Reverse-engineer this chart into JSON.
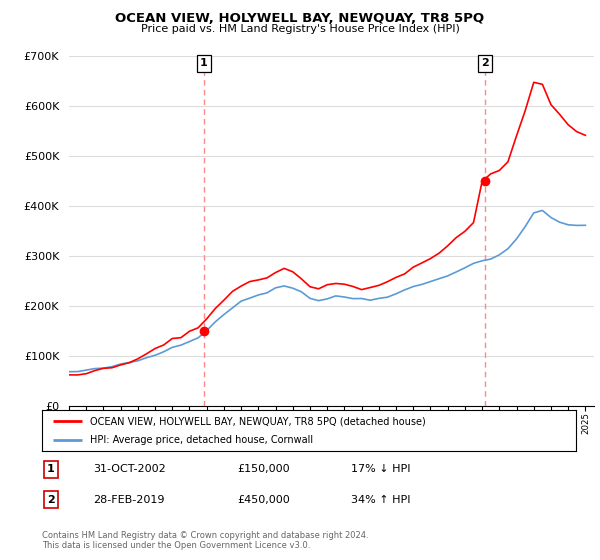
{
  "title": "OCEAN VIEW, HOLYWELL BAY, NEWQUAY, TR8 5PQ",
  "subtitle": "Price paid vs. HM Land Registry's House Price Index (HPI)",
  "ylim": [
    0,
    700000
  ],
  "sale1_year": 2002.83,
  "sale1_price": 150000,
  "sale2_year": 2019.16,
  "sale2_price": 450000,
  "legend_line1": "OCEAN VIEW, HOLYWELL BAY, NEWQUAY, TR8 5PQ (detached house)",
  "legend_line2": "HPI: Average price, detached house, Cornwall",
  "table_row1": [
    "1",
    "31-OCT-2002",
    "£150,000",
    "17% ↓ HPI"
  ],
  "table_row2": [
    "2",
    "28-FEB-2019",
    "£450,000",
    "34% ↑ HPI"
  ],
  "footer": "Contains HM Land Registry data © Crown copyright and database right 2024.\nThis data is licensed under the Open Government Licence v3.0.",
  "hpi_color": "#5b9bd5",
  "price_color": "#ff0000",
  "vline_color": "#ff8888",
  "background_color": "#ffffff",
  "grid_color": "#dddddd",
  "years_hpi": [
    1995,
    1995.5,
    1996,
    1996.5,
    1997,
    1997.5,
    1998,
    1998.5,
    1999,
    1999.5,
    2000,
    2000.5,
    2001,
    2001.5,
    2002,
    2002.5,
    2003,
    2003.5,
    2004,
    2004.5,
    2005,
    2005.5,
    2006,
    2006.5,
    2007,
    2007.5,
    2008,
    2008.5,
    2009,
    2009.5,
    2010,
    2010.5,
    2011,
    2011.5,
    2012,
    2012.5,
    2013,
    2013.5,
    2014,
    2014.5,
    2015,
    2015.5,
    2016,
    2016.5,
    2017,
    2017.5,
    2018,
    2018.5,
    2019,
    2019.5,
    2020,
    2020.5,
    2021,
    2021.5,
    2022,
    2022.5,
    2023,
    2023.5,
    2024,
    2024.5,
    2025
  ],
  "hpi_vals": [
    68000,
    69000,
    71000,
    73000,
    76000,
    79000,
    82000,
    86000,
    91000,
    96000,
    102000,
    109000,
    117000,
    124000,
    131000,
    137000,
    152000,
    168000,
    184000,
    198000,
    208000,
    216000,
    222000,
    228000,
    237000,
    240000,
    237000,
    228000,
    216000,
    211000,
    215000,
    218000,
    218000,
    216000,
    214000,
    213000,
    215000,
    220000,
    226000,
    232000,
    238000,
    243000,
    249000,
    255000,
    262000,
    269000,
    277000,
    284000,
    290000,
    296000,
    302000,
    315000,
    335000,
    358000,
    385000,
    390000,
    378000,
    368000,
    362000,
    360000,
    362000
  ],
  "price_ratio": [
    0.92,
    0.93,
    0.94,
    0.95,
    0.96,
    0.97,
    0.98,
    1.0,
    1.05,
    1.08,
    1.1,
    1.12,
    1.13,
    1.14,
    1.13,
    1.14,
    1.15,
    1.16,
    1.17,
    1.16,
    1.15,
    1.14,
    1.14,
    1.13,
    1.13,
    1.14,
    1.13,
    1.12,
    1.1,
    1.11,
    1.12,
    1.13,
    1.12,
    1.11,
    1.1,
    1.11,
    1.12,
    1.13,
    1.14,
    1.15,
    1.17,
    1.18,
    1.19,
    1.2,
    1.22,
    1.24,
    1.26,
    1.29,
    1.55,
    1.58,
    1.56,
    1.55,
    1.6,
    1.65,
    1.68,
    1.65,
    1.6,
    1.58,
    1.55,
    1.52,
    1.5
  ]
}
